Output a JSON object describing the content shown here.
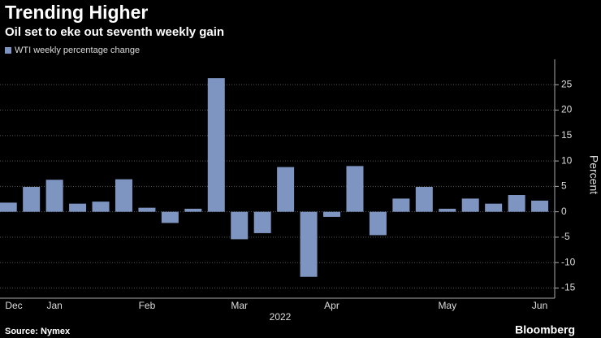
{
  "chart_data": {
    "type": "bar",
    "title": "Trending Higher",
    "subtitle": "Oil set to eke out seventh weekly gain",
    "series": [
      {
        "name": "WTI weekly percentage change",
        "color": "#7d95c0",
        "values": [
          1.8,
          4.9,
          6.3,
          1.6,
          2.0,
          6.4,
          0.8,
          -2.2,
          0.6,
          26.3,
          -5.4,
          -4.2,
          8.8,
          -12.8,
          -1.0,
          9.0,
          -4.6,
          2.6,
          4.9,
          0.6,
          2.6,
          1.6,
          3.3,
          2.2
        ]
      }
    ],
    "categories": [
      "Dec",
      null,
      "Jan",
      null,
      null,
      null,
      "Feb",
      null,
      null,
      null,
      "Mar",
      null,
      null,
      null,
      "Apr",
      null,
      null,
      null,
      null,
      "May",
      null,
      null,
      null,
      "Jun"
    ],
    "x_label": "2022",
    "y_label": "Percent",
    "ylim": [
      -17,
      30
    ],
    "yticks": [
      25,
      20,
      15,
      10,
      5,
      0,
      -5,
      -10,
      -15
    ],
    "grid": true,
    "source": "Source: Nymex",
    "brand": "Bloomberg"
  }
}
